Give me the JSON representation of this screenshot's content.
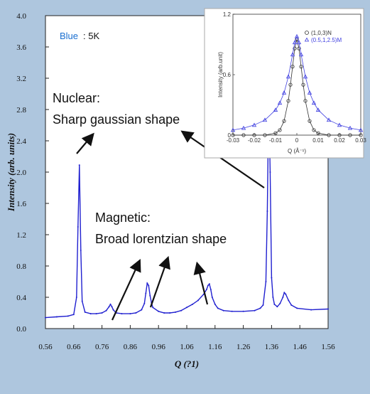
{
  "chart_data": [
    {
      "type": "line",
      "title": "",
      "xlabel": "Q (?1)",
      "ylabel": "Intensity (arb. units)",
      "xlim": [
        0.56,
        1.56
      ],
      "ylim": [
        0.0,
        4.0
      ],
      "x_ticks": [
        "0.56",
        "0.66",
        "0.76",
        "0.86",
        "0.96",
        "1.06",
        "1.16",
        "1.26",
        "1.36",
        "1.46",
        "1.56"
      ],
      "y_ticks": [
        "0.0",
        "0.4",
        "0.8",
        "1.2",
        "1.6",
        "2.0",
        "2.4",
        "2.8",
        "3.2",
        "3.6",
        "4.0"
      ],
      "series": [
        {
          "color": "#2020d0",
          "x": [
            0.56,
            0.6,
            0.64,
            0.66,
            0.67,
            0.675,
            0.68,
            0.685,
            0.69,
            0.7,
            0.72,
            0.74,
            0.76,
            0.775,
            0.785,
            0.79,
            0.795,
            0.8,
            0.81,
            0.83,
            0.86,
            0.88,
            0.9,
            0.91,
            0.915,
            0.92,
            0.925,
            0.93,
            0.935,
            0.94,
            0.96,
            0.98,
            1.0,
            1.02,
            1.04,
            1.06,
            1.08,
            1.1,
            1.12,
            1.13,
            1.135,
            1.14,
            1.145,
            1.15,
            1.16,
            1.17,
            1.19,
            1.22,
            1.26,
            1.3,
            1.32,
            1.33,
            1.34,
            1.345,
            1.35,
            1.355,
            1.36,
            1.365,
            1.37,
            1.38,
            1.39,
            1.4,
            1.405,
            1.41,
            1.42,
            1.43,
            1.45,
            1.5,
            1.56
          ],
          "values": [
            0.14,
            0.15,
            0.16,
            0.18,
            0.4,
            1.3,
            2.09,
            1.0,
            0.35,
            0.21,
            0.19,
            0.19,
            0.2,
            0.23,
            0.28,
            0.31,
            0.28,
            0.24,
            0.2,
            0.19,
            0.19,
            0.2,
            0.24,
            0.32,
            0.45,
            0.58,
            0.55,
            0.42,
            0.33,
            0.27,
            0.22,
            0.2,
            0.2,
            0.21,
            0.23,
            0.27,
            0.31,
            0.36,
            0.44,
            0.5,
            0.55,
            0.57,
            0.5,
            0.4,
            0.31,
            0.26,
            0.23,
            0.22,
            0.22,
            0.23,
            0.26,
            0.3,
            0.6,
            1.5,
            2.95,
            2.0,
            0.65,
            0.4,
            0.31,
            0.28,
            0.32,
            0.4,
            0.46,
            0.44,
            0.36,
            0.3,
            0.26,
            0.24,
            0.25
          ]
        }
      ],
      "annotations": {
        "blue_label": "Blue",
        "temp_label": ": 5K",
        "nuclear_title": "Nuclear:",
        "nuclear_desc": "Sharp gaussian shape",
        "magnetic_title": "Magnetic:",
        "magnetic_desc": "Broad lorentzian shape"
      }
    },
    {
      "type": "scatter",
      "title": "",
      "xlabel": "Q (Å⁻¹)",
      "ylabel": "Intensity (arb.unit)",
      "xlim": [
        -0.03,
        0.03
      ],
      "ylim": [
        0,
        1.2
      ],
      "x_ticks": [
        "-0.03",
        "-0.02",
        "-0.01",
        "0",
        "0.01",
        "0.02",
        "0.03"
      ],
      "y_ticks": [
        "0",
        "0.6",
        "1.2"
      ],
      "series": [
        {
          "name": "(1,0,3)N",
          "color": "#333333",
          "marker": "circle",
          "x": [
            -0.03,
            -0.025,
            -0.02,
            -0.015,
            -0.01,
            -0.008,
            -0.006,
            -0.004,
            -0.003,
            -0.002,
            -0.001,
            0,
            0.001,
            0.002,
            0.003,
            0.004,
            0.006,
            0.008,
            0.01,
            0.015,
            0.02,
            0.025,
            0.03
          ],
          "values": [
            0.0,
            0.0,
            0.0,
            0.0,
            0.02,
            0.05,
            0.14,
            0.34,
            0.5,
            0.68,
            0.86,
            0.95,
            0.86,
            0.68,
            0.5,
            0.34,
            0.14,
            0.05,
            0.02,
            0.0,
            0.0,
            0.0,
            0.0
          ]
        },
        {
          "name": "(0.5,1,2.5)M",
          "color": "#4040e0",
          "marker": "triangle",
          "x": [
            -0.03,
            -0.025,
            -0.02,
            -0.015,
            -0.01,
            -0.008,
            -0.006,
            -0.004,
            -0.002,
            -0.001,
            0,
            0.001,
            0.002,
            0.004,
            0.006,
            0.008,
            0.01,
            0.015,
            0.02,
            0.025,
            0.03
          ],
          "values": [
            0.05,
            0.07,
            0.1,
            0.15,
            0.25,
            0.32,
            0.42,
            0.58,
            0.8,
            0.92,
            0.98,
            0.92,
            0.8,
            0.58,
            0.42,
            0.32,
            0.25,
            0.15,
            0.1,
            0.07,
            0.05
          ]
        }
      ],
      "legend_position": "top-right"
    }
  ]
}
